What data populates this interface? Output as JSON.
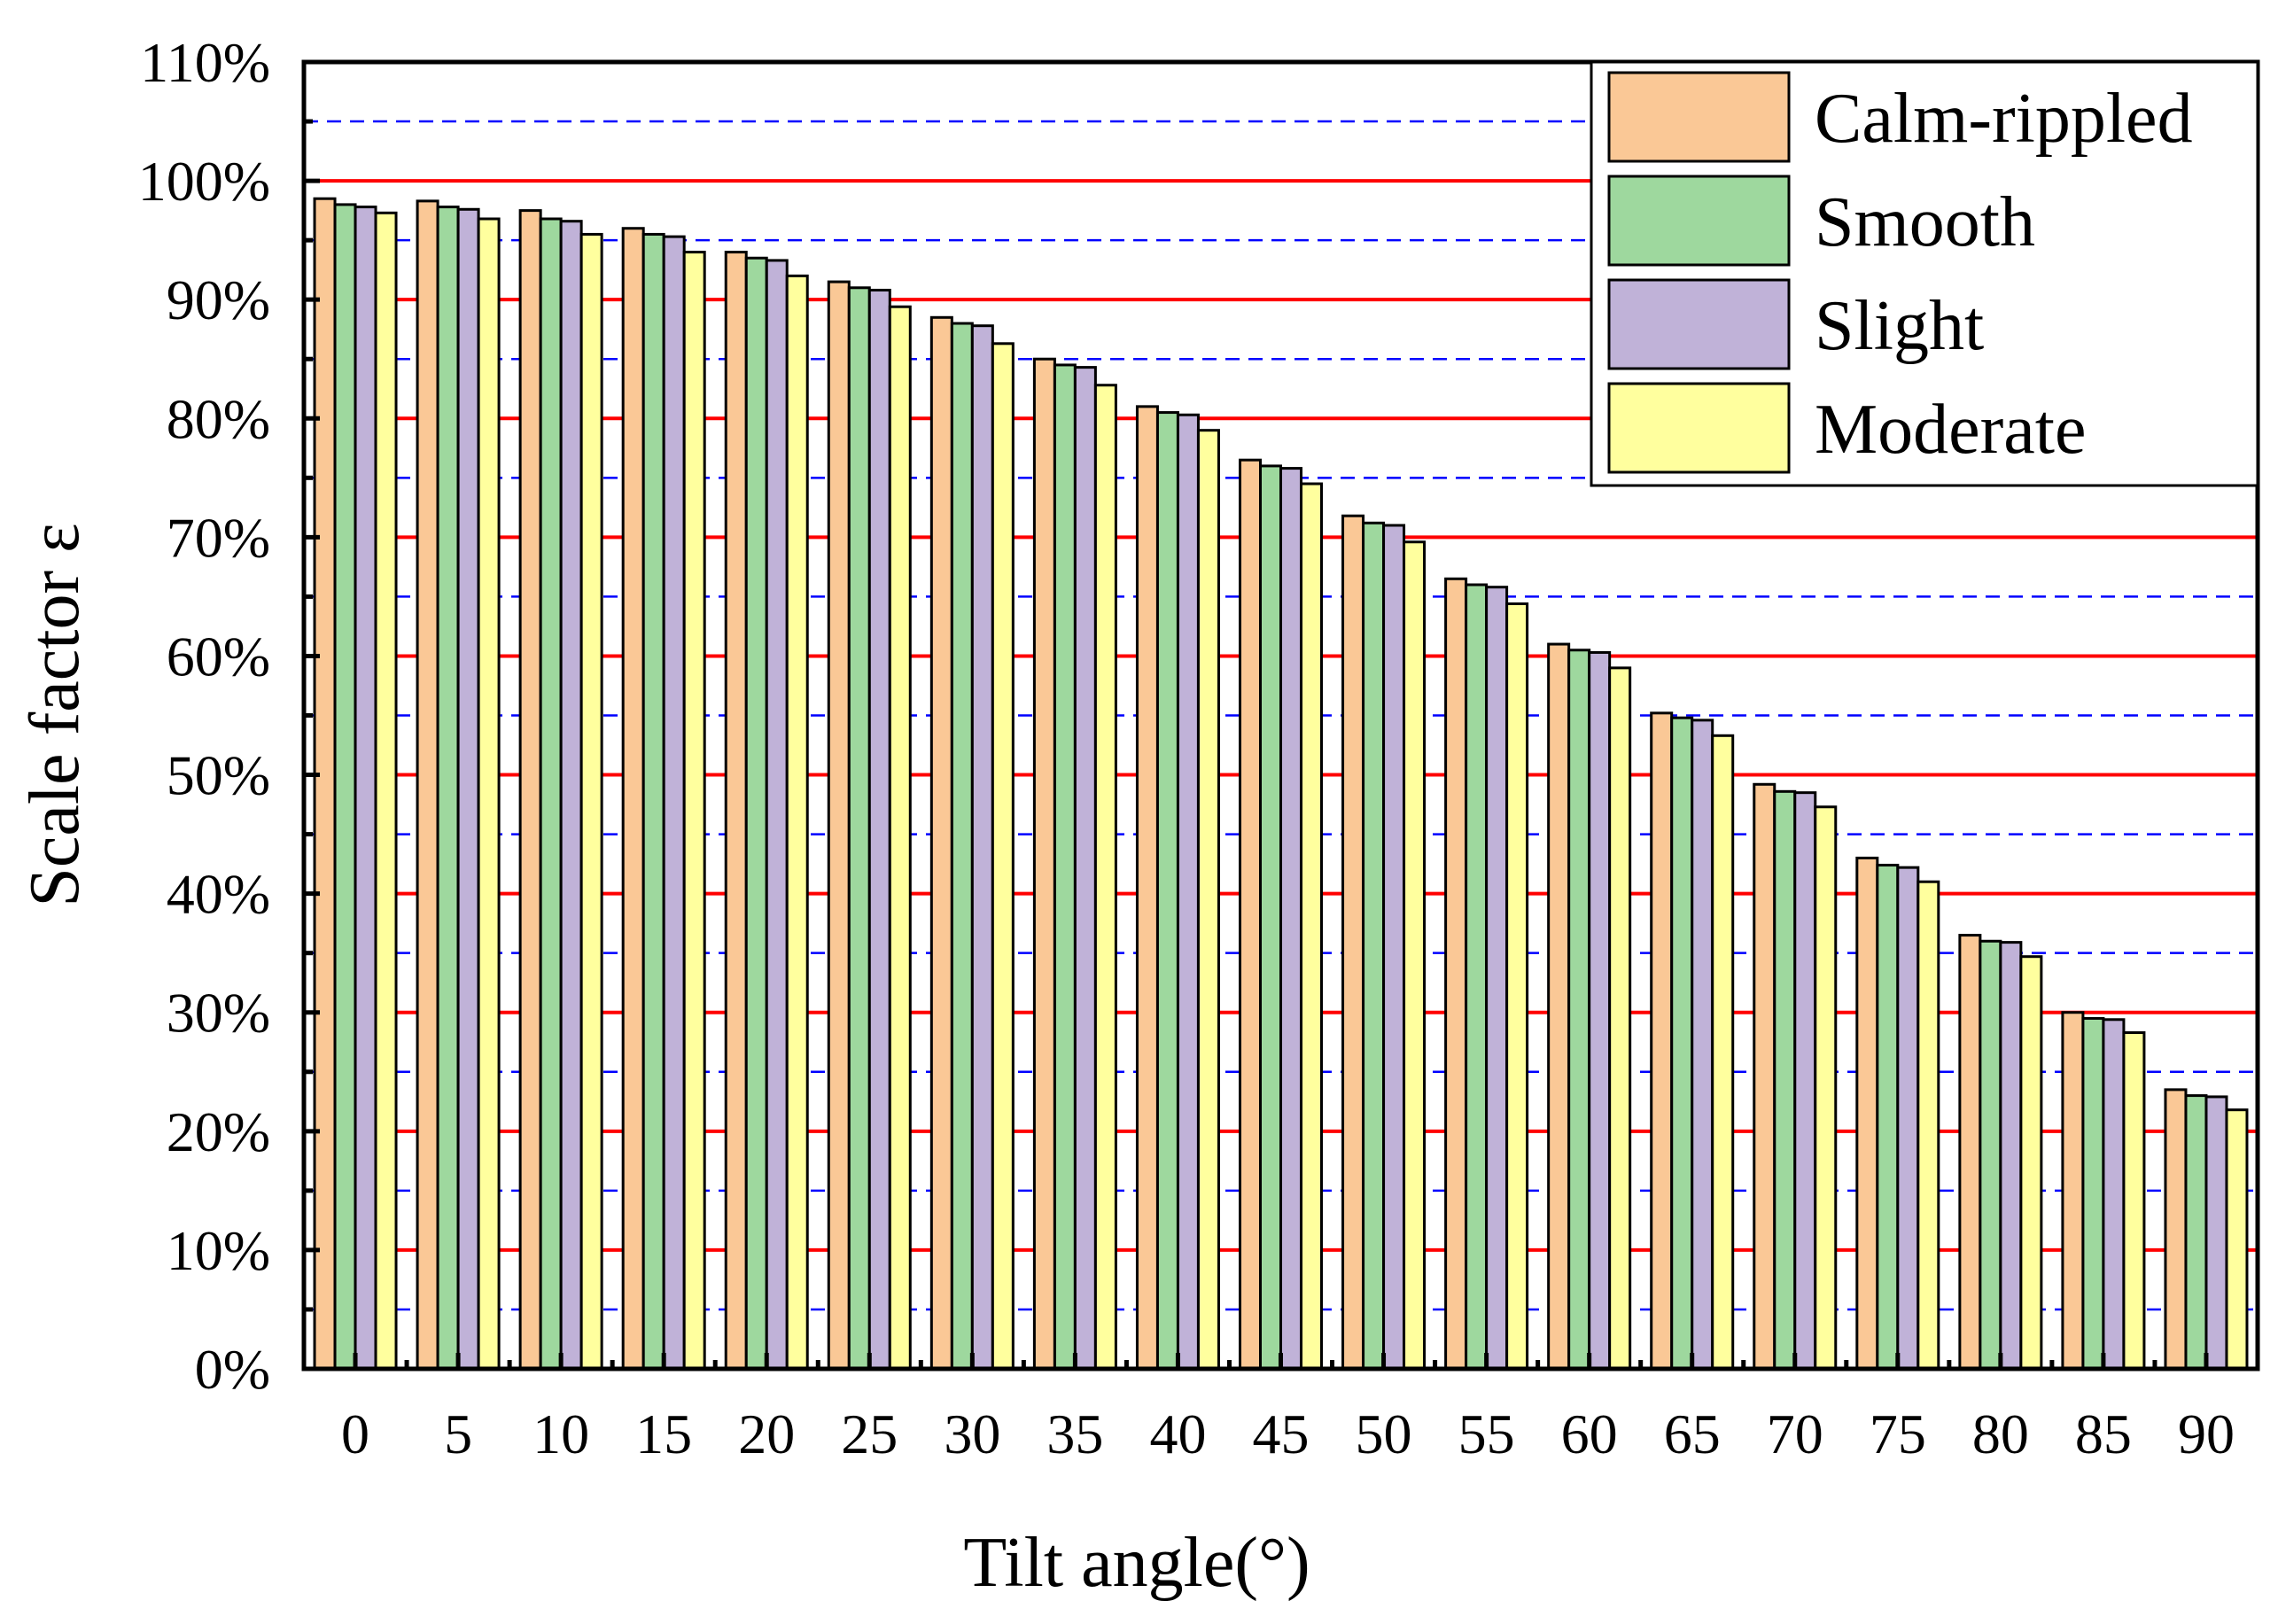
{
  "chart_data": {
    "type": "bar",
    "title": "",
    "xlabel": "Tilt angle(°)",
    "ylabel": "Scale factor ε",
    "ylim": [
      0,
      110
    ],
    "ytick_values": [
      0,
      10,
      20,
      30,
      40,
      50,
      60,
      70,
      80,
      90,
      100,
      110
    ],
    "ytick_labels": [
      "0%",
      "10%",
      "20%",
      "30%",
      "40%",
      "50%",
      "60%",
      "70%",
      "80%",
      "90%",
      "100%",
      "110%"
    ],
    "categories": [
      "0",
      "5",
      "10",
      "15",
      "20",
      "25",
      "30",
      "35",
      "40",
      "45",
      "50",
      "55",
      "60",
      "65",
      "70",
      "75",
      "80",
      "85",
      "90"
    ],
    "grid": {
      "major": "on",
      "minor": "on",
      "major_color": "#ff0000",
      "minor_color": "#0000ff"
    },
    "legend_position": "top-right",
    "series": [
      {
        "name": "Calm-rippled",
        "color": "#fac896",
        "values": [
          98.5,
          98.3,
          97.5,
          96.0,
          94.0,
          91.5,
          88.5,
          85.0,
          81.0,
          76.5,
          71.8,
          66.5,
          61.0,
          55.2,
          49.2,
          43.0,
          36.5,
          30.0,
          23.5
        ]
      },
      {
        "name": "Smooth",
        "color": "#9ed89e",
        "values": [
          98.0,
          97.8,
          96.8,
          95.5,
          93.5,
          91.0,
          88.0,
          84.5,
          80.5,
          76.0,
          71.2,
          66.0,
          60.5,
          54.8,
          48.6,
          42.4,
          36.0,
          29.5,
          23.0
        ]
      },
      {
        "name": "Slight",
        "color": "#c0b2d8",
        "values": [
          97.8,
          97.6,
          96.6,
          95.3,
          93.3,
          90.8,
          87.8,
          84.3,
          80.3,
          75.8,
          71.0,
          65.8,
          60.3,
          54.6,
          48.5,
          42.2,
          35.9,
          29.4,
          22.9
        ]
      },
      {
        "name": "Moderate",
        "color": "#ffff9e",
        "values": [
          97.3,
          96.8,
          95.5,
          94.0,
          92.0,
          89.4,
          86.3,
          82.8,
          79.0,
          74.5,
          69.6,
          64.4,
          59.0,
          53.3,
          47.3,
          41.0,
          34.7,
          28.3,
          21.8
        ]
      }
    ]
  }
}
